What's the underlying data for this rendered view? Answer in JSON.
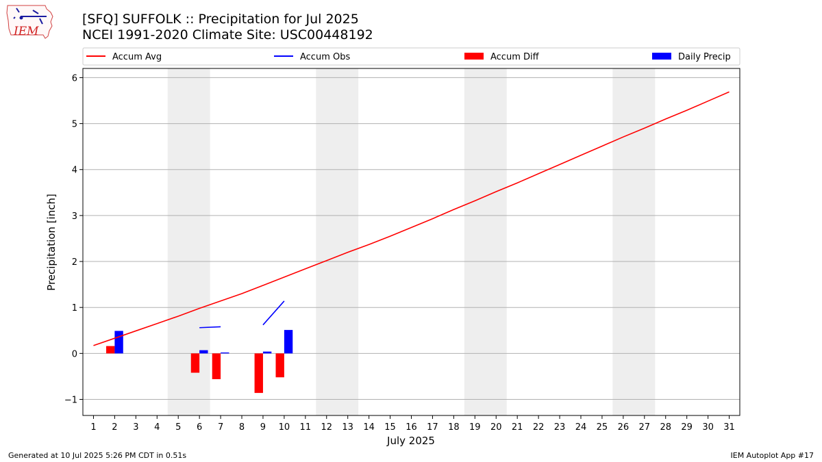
{
  "header": {
    "title_line1": "[SFQ] SUFFOLK :: Precipitation for Jul 2025",
    "title_line2": "NCEI 1991-2020 Climate Site: USC00448192",
    "logo_text": "IEM"
  },
  "footer": {
    "generated": "Generated at 10 Jul 2025 5:26 PM CDT in 0.51s",
    "app": "IEM Autoplot App #17"
  },
  "colors": {
    "accum_avg": "#ff0000",
    "accum_obs": "#0000ff",
    "accum_diff": "#ff0000",
    "daily_precip": "#0000ff",
    "weekend_shade": "#eeeeee",
    "grid": "#b0b0b0"
  },
  "chart_data": {
    "type": "bar",
    "xlabel": "July 2025",
    "ylabel": "Precipitation [inch]",
    "x": [
      1,
      2,
      3,
      4,
      5,
      6,
      7,
      8,
      9,
      10,
      11,
      12,
      13,
      14,
      15,
      16,
      17,
      18,
      19,
      20,
      21,
      22,
      23,
      24,
      25,
      26,
      27,
      28,
      29,
      30,
      31
    ],
    "xlim": [
      0.5,
      31.5
    ],
    "ylim": [
      -1.35,
      6.2
    ],
    "yticks": [
      -1,
      0,
      1,
      2,
      3,
      4,
      5,
      6
    ],
    "ytick_labels": [
      "−1",
      "0",
      "1",
      "2",
      "3",
      "4",
      "5",
      "6"
    ],
    "grid": "horizontal",
    "legend": {
      "placement": "top",
      "entries": [
        {
          "label": "Accum Avg",
          "kind": "line",
          "color": "#ff0000"
        },
        {
          "label": "Accum Obs",
          "kind": "line",
          "color": "#0000ff"
        },
        {
          "label": "Accum Diff",
          "kind": "bar",
          "color": "#ff0000"
        },
        {
          "label": "Daily Precip",
          "kind": "bar",
          "color": "#0000ff"
        }
      ]
    },
    "weekend_spans": [
      [
        4.5,
        6.5
      ],
      [
        11.5,
        13.5
      ],
      [
        18.5,
        20.5
      ],
      [
        25.5,
        27.5
      ]
    ],
    "series": [
      {
        "name": "Accum Avg",
        "kind": "line",
        "color": "#ff0000",
        "values": [
          0.17,
          0.33,
          0.49,
          0.65,
          0.81,
          0.98,
          1.14,
          1.3,
          1.48,
          1.66,
          1.84,
          2.02,
          2.2,
          2.37,
          2.55,
          2.74,
          2.93,
          3.13,
          3.32,
          3.52,
          3.71,
          3.91,
          4.11,
          4.31,
          4.51,
          4.71,
          4.9,
          5.1,
          5.29,
          5.49,
          5.69
        ]
      },
      {
        "name": "Accum Obs",
        "kind": "line",
        "color": "#0000ff",
        "values": [
          null,
          null,
          null,
          null,
          null,
          0.56,
          0.58,
          null,
          0.62,
          1.14,
          null,
          null,
          null,
          null,
          null,
          null,
          null,
          null,
          null,
          null,
          null,
          null,
          null,
          null,
          null,
          null,
          null,
          null,
          null,
          null,
          null
        ]
      },
      {
        "name": "Accum Diff",
        "kind": "bar",
        "color": "#ff0000",
        "values": [
          null,
          0.16,
          null,
          null,
          null,
          -0.42,
          -0.56,
          null,
          -0.86,
          -0.52,
          null,
          null,
          null,
          null,
          null,
          null,
          null,
          null,
          null,
          null,
          null,
          null,
          null,
          null,
          null,
          null,
          null,
          null,
          null,
          null,
          null
        ]
      },
      {
        "name": "Daily Precip",
        "kind": "bar",
        "color": "#0000ff",
        "values": [
          null,
          0.49,
          null,
          null,
          null,
          0.07,
          0.02,
          null,
          0.04,
          0.51,
          null,
          null,
          null,
          null,
          null,
          null,
          null,
          null,
          null,
          null,
          null,
          null,
          null,
          null,
          null,
          null,
          null,
          null,
          null,
          null,
          null
        ]
      }
    ]
  }
}
